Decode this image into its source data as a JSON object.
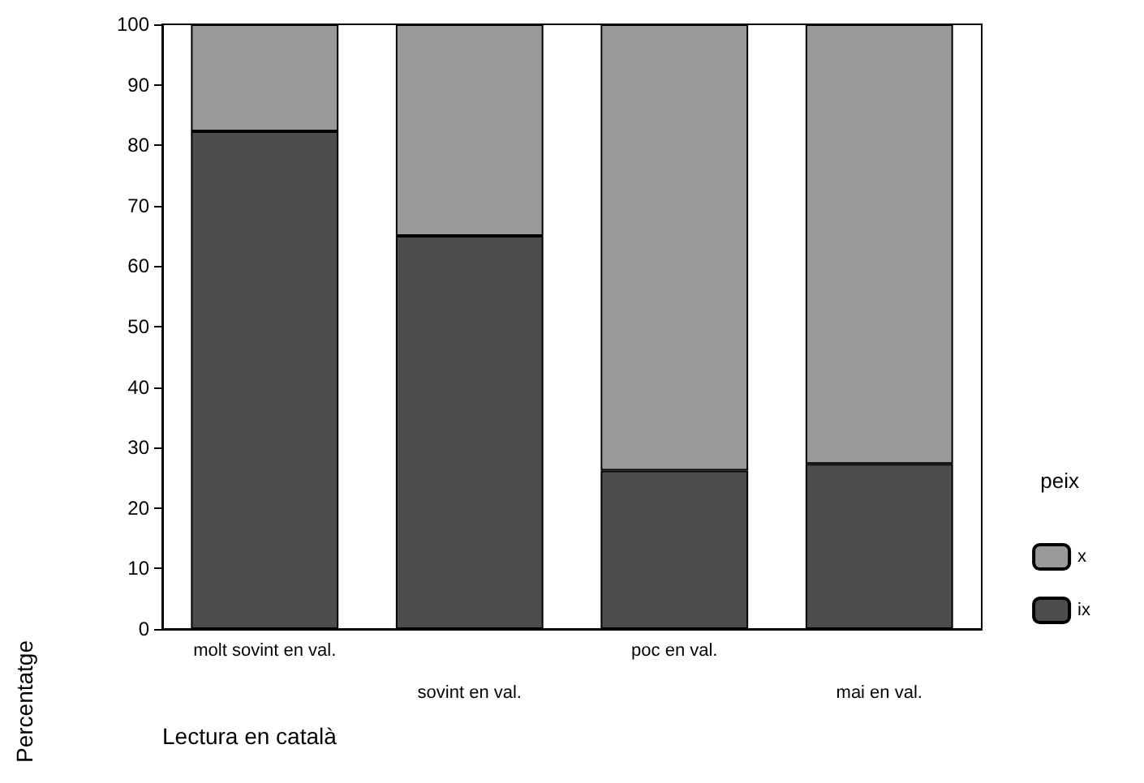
{
  "chart_data": {
    "type": "bar",
    "stacked": true,
    "xlabel": "Lectura en català",
    "ylabel": "Percentatge",
    "legend_title": "peix",
    "categories": [
      "molt sovint en val.",
      "sovint en val.",
      "poc en val.",
      "mai en val."
    ],
    "series": [
      {
        "name": "ix",
        "color": "#4d4d4d",
        "values": [
          82.3,
          65.0,
          26.2,
          27.3
        ]
      },
      {
        "name": "x",
        "color": "#999999",
        "values": [
          17.7,
          35.0,
          73.8,
          72.7
        ]
      }
    ],
    "ylim": [
      0,
      100
    ],
    "yticks": [
      0,
      10,
      20,
      30,
      40,
      50,
      60,
      70,
      80,
      90,
      100
    ],
    "grid": false,
    "legend": "right"
  }
}
